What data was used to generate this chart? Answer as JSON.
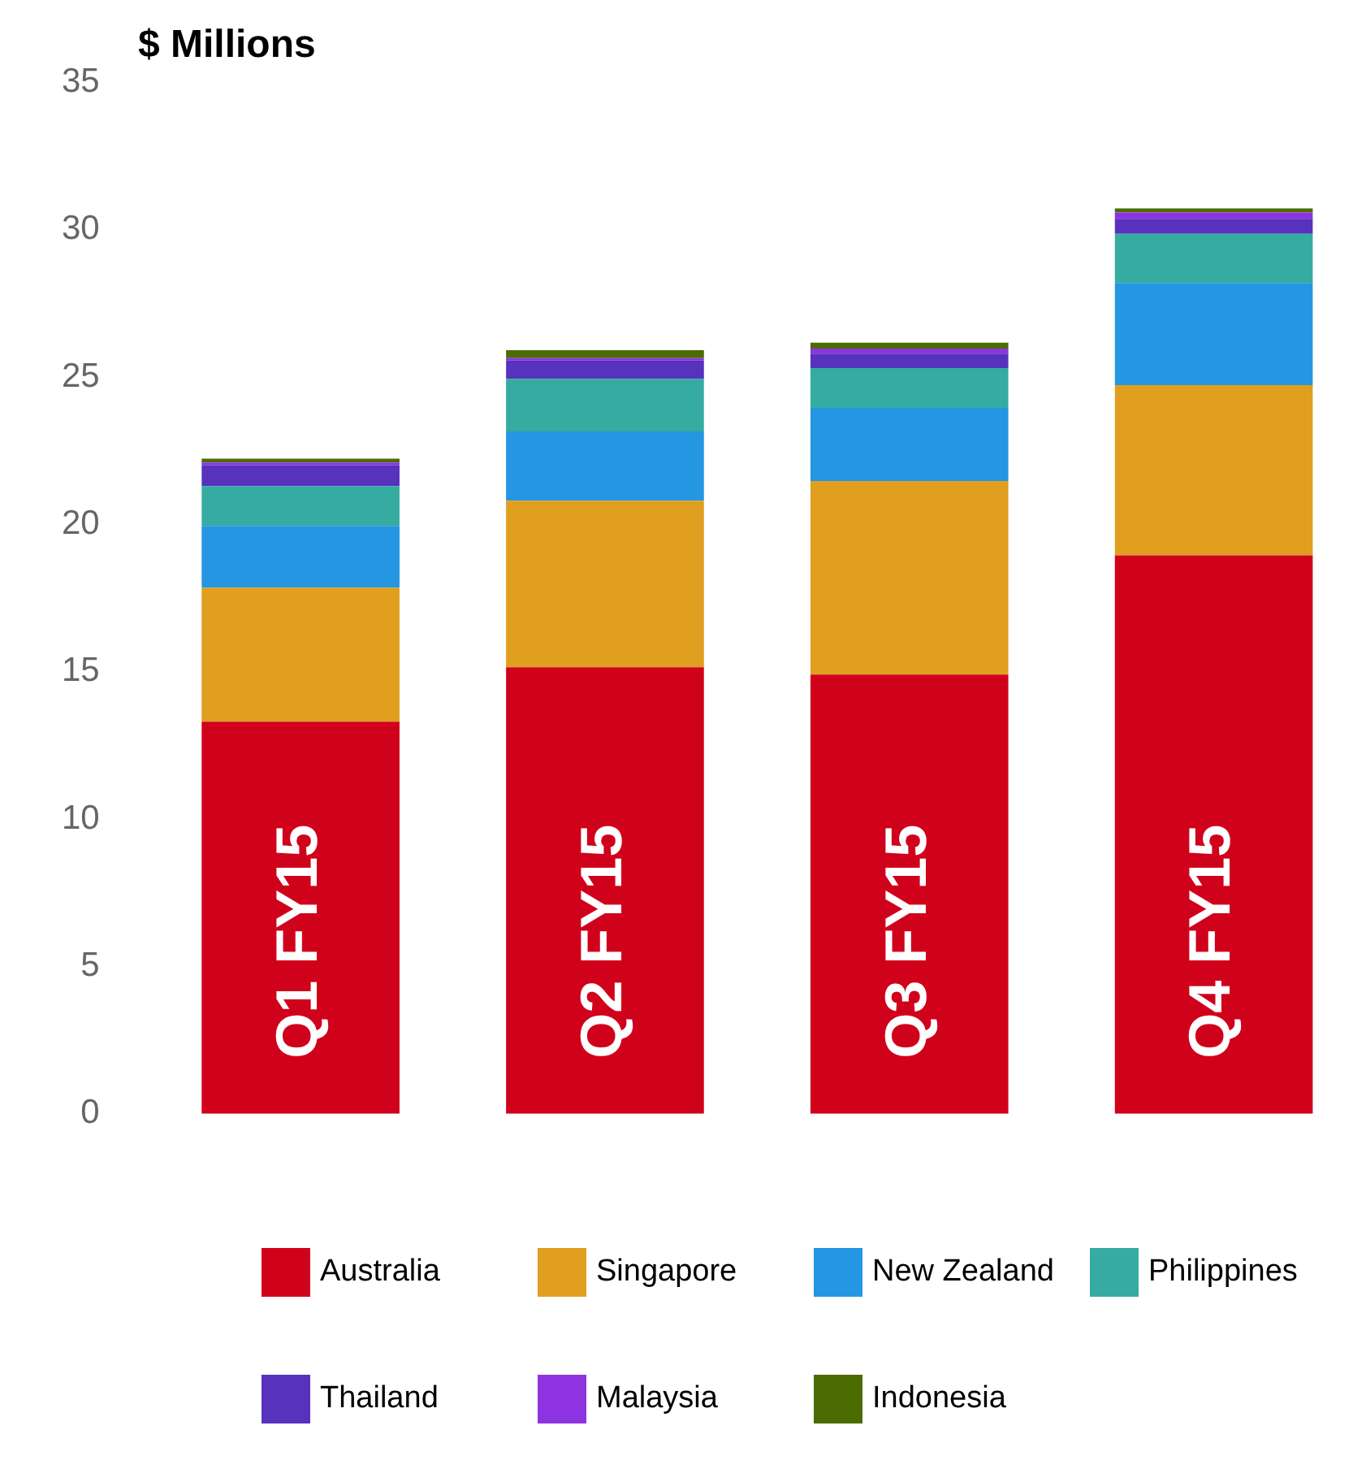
{
  "chart_data": {
    "type": "bar",
    "title": "$ Millions",
    "categories": [
      "Q1 FY15",
      "Q2 FY15",
      "Q3 FY15",
      "Q4 FY15"
    ],
    "stacked": true,
    "series": [
      {
        "name": "Australia",
        "color": "#d0021b",
        "values": [
          13.3,
          15.15,
          14.9,
          18.95
        ]
      },
      {
        "name": "Singapore",
        "color": "#e09f1f",
        "values": [
          4.55,
          5.65,
          6.57,
          5.77
        ]
      },
      {
        "name": "New Zealand",
        "color": "#2596e1",
        "values": [
          2.1,
          2.35,
          2.48,
          3.47
        ]
      },
      {
        "name": "Philippines",
        "color": "#36aba1",
        "values": [
          1.35,
          1.78,
          1.35,
          1.67
        ]
      },
      {
        "name": "Thailand",
        "color": "#5632bd",
        "values": [
          0.7,
          0.63,
          0.49,
          0.51
        ]
      },
      {
        "name": "Malaysia",
        "color": "#8e33e0",
        "values": [
          0.1,
          0.08,
          0.17,
          0.21
        ]
      },
      {
        "name": "Indonesia",
        "color": "#4c6b00",
        "values": [
          0.13,
          0.27,
          0.2,
          0.14
        ]
      }
    ],
    "ylim": [
      0,
      35
    ],
    "yticks": [
      0,
      5,
      10,
      15,
      20,
      25,
      30,
      35
    ],
    "grid": false,
    "legend": "bottom"
  }
}
